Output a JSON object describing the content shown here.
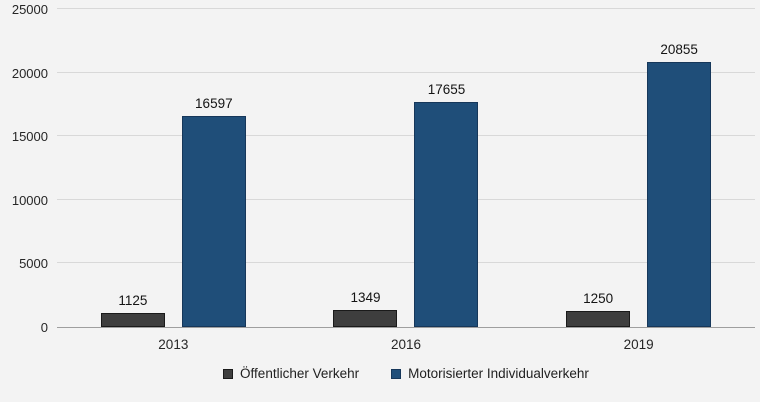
{
  "chart_data": {
    "type": "bar",
    "categories": [
      "2013",
      "2016",
      "2019"
    ],
    "series": [
      {
        "name": "Öffentlicher Verkehr",
        "values": [
          1125,
          1349,
          1250
        ],
        "fill_color": "#3e3e3e",
        "border_color": "#1a1a1a"
      },
      {
        "name": "Motorisierter Individualverkehr",
        "values": [
          16597,
          17655,
          20855
        ],
        "fill_color": "#1f4e79",
        "border_color": "#16375a"
      }
    ],
    "value_labels": [
      "1125",
      "16597",
      "1349",
      "17655",
      "1250",
      "20855"
    ],
    "title": "",
    "xlabel": "",
    "ylabel": "",
    "ylim": [
      0,
      25000
    ],
    "yticks": [
      0,
      5000,
      10000,
      15000,
      20000,
      25000
    ],
    "ytick_labels": [
      "0",
      "5000",
      "10000",
      "15000",
      "20000",
      "25000"
    ],
    "grid": true,
    "legend_position": "bottom",
    "background_color": "#f3f3f3",
    "gridline_color": "#d8d8d8",
    "axis_line_color": "#9e9e9e",
    "text_color": "#262626"
  }
}
